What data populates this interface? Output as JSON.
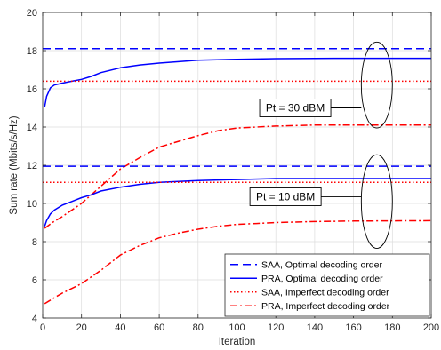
{
  "chart_data": {
    "type": "line",
    "title": "",
    "xlabel": "Iteration",
    "ylabel": "Sum rate (Mbits/s/Hz)",
    "xlim": [
      0,
      200
    ],
    "ylim": [
      4,
      20
    ],
    "xticks": [
      "0",
      "20",
      "40",
      "60",
      "80",
      "100",
      "120",
      "140",
      "160",
      "180",
      "200"
    ],
    "yticks": [
      "4",
      "6",
      "8",
      "10",
      "12",
      "14",
      "16",
      "18",
      "20"
    ],
    "grid": true,
    "legend_position": "bottom-right",
    "series": [
      {
        "name": "SAA, Optimal decoding order",
        "group": "Pt = 30 dBM",
        "color": "#0000ff",
        "style": "dashed",
        "x": [
          0,
          200
        ],
        "y": [
          18.1,
          18.1
        ]
      },
      {
        "name": "PRA, Optimal decoding order",
        "group": "Pt = 30 dBM",
        "color": "#0000ff",
        "style": "solid",
        "x": [
          1,
          2,
          4,
          6,
          10,
          15,
          20,
          25,
          30,
          40,
          50,
          60,
          80,
          100,
          120,
          150,
          200
        ],
        "y": [
          15.05,
          15.6,
          16.05,
          16.2,
          16.3,
          16.4,
          16.5,
          16.65,
          16.85,
          17.1,
          17.25,
          17.35,
          17.5,
          17.55,
          17.58,
          17.6,
          17.6
        ]
      },
      {
        "name": "SAA, Imperfect decoding order",
        "group": "Pt = 30 dBM",
        "color": "#ff0000",
        "style": "dotted",
        "x": [
          0,
          200
        ],
        "y": [
          16.4,
          16.4
        ]
      },
      {
        "name": "PRA, Imperfect decoding order",
        "group": "Pt = 30 dBM",
        "color": "#ff0000",
        "style": "dashdot",
        "x": [
          1,
          5,
          10,
          20,
          30,
          40,
          50,
          60,
          70,
          80,
          90,
          100,
          110,
          120,
          140,
          160,
          200
        ],
        "y": [
          8.7,
          9.0,
          9.3,
          10.0,
          10.9,
          11.8,
          12.4,
          12.95,
          13.25,
          13.55,
          13.8,
          13.95,
          14.0,
          14.05,
          14.1,
          14.1,
          14.1
        ]
      },
      {
        "name": "SAA, Optimal decoding order",
        "group": "Pt = 10 dBM",
        "color": "#0000ff",
        "style": "dashed",
        "x": [
          0,
          200
        ],
        "y": [
          11.95,
          11.95
        ]
      },
      {
        "name": "PRA, Optimal decoding order",
        "group": "Pt = 10 dBM",
        "color": "#0000ff",
        "style": "solid",
        "x": [
          1,
          2,
          4,
          6,
          10,
          15,
          20,
          25,
          30,
          40,
          50,
          60,
          80,
          100,
          120,
          150,
          200
        ],
        "y": [
          8.8,
          9.1,
          9.45,
          9.65,
          9.9,
          10.1,
          10.3,
          10.45,
          10.65,
          10.85,
          11.0,
          11.1,
          11.2,
          11.25,
          11.3,
          11.3,
          11.3
        ]
      },
      {
        "name": "SAA, Imperfect decoding order",
        "group": "Pt = 10 dBM",
        "color": "#ff0000",
        "style": "dotted",
        "x": [
          0,
          200
        ],
        "y": [
          11.1,
          11.1
        ]
      },
      {
        "name": "PRA, Imperfect decoding order",
        "group": "Pt = 10 dBM",
        "color": "#ff0000",
        "style": "dashdot",
        "x": [
          1,
          5,
          10,
          20,
          30,
          40,
          50,
          60,
          70,
          80,
          90,
          100,
          110,
          120,
          140,
          160,
          200
        ],
        "y": [
          4.75,
          5.0,
          5.3,
          5.8,
          6.5,
          7.3,
          7.8,
          8.2,
          8.45,
          8.65,
          8.8,
          8.9,
          8.95,
          9.0,
          9.05,
          9.08,
          9.1
        ]
      }
    ],
    "legend": [
      {
        "label": "SAA, Optimal decoding order",
        "color": "#0000ff",
        "style": "dashed"
      },
      {
        "label": "PRA, Optimal decoding order",
        "color": "#0000ff",
        "style": "solid"
      },
      {
        "label": "SAA, Imperfect decoding order",
        "color": "#ff0000",
        "style": "dotted"
      },
      {
        "label": "PRA, Imperfect decoding order",
        "color": "#ff0000",
        "style": "dashdot"
      }
    ],
    "annotations": [
      {
        "text": "Pt = 30 dBM",
        "ellipse_center": [
          172,
          16.2
        ],
        "ellipse_radii": [
          8,
          2.25
        ],
        "label_at": [
          130,
          15.0
        ]
      },
      {
        "text": "Pt = 10 dBM",
        "ellipse_center": [
          172,
          10.1
        ],
        "ellipse_radii": [
          8,
          2.45
        ],
        "label_at": [
          125,
          10.35
        ]
      }
    ]
  }
}
